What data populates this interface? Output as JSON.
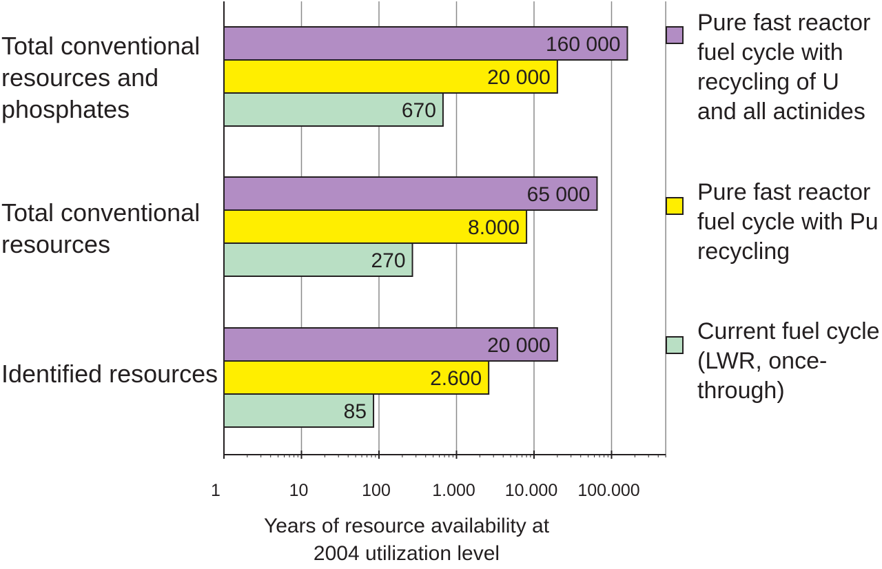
{
  "chart_data": {
    "type": "bar",
    "orientation": "horizontal",
    "x_scale": "log",
    "xlim": [
      1,
      500000
    ],
    "grid": true,
    "legend_position": "right",
    "categories": [
      "Total conventional resources and phosphates",
      "Total conventional resources",
      "Identified resources"
    ],
    "series": [
      {
        "name": "Pure fast reactor fuel cycle with recycling of U and all actinides",
        "color": "#b28dc4",
        "values": [
          160000,
          65000,
          20000
        ],
        "labels": [
          "160 000",
          "65 000",
          "20 000"
        ]
      },
      {
        "name": "Pure fast reactor fuel cycle with Pu recycling",
        "color": "#ffee00",
        "values": [
          20000,
          8000,
          2600
        ],
        "labels": [
          "20 000",
          "8.000",
          "2.600"
        ]
      },
      {
        "name": "Current fuel cycle (LWR, once-through)",
        "color": "#b9dfc4",
        "values": [
          670,
          270,
          85
        ],
        "labels": [
          "670",
          "270",
          "85"
        ]
      }
    ],
    "x_ticks": [
      1,
      10,
      100,
      1000,
      10000,
      100000
    ],
    "x_tick_labels": [
      "1",
      "10",
      "100",
      "1.000",
      "10.000",
      "100.000"
    ],
    "xlabel_lines": [
      "Years of resource availability at",
      "2004 utilization level"
    ]
  }
}
